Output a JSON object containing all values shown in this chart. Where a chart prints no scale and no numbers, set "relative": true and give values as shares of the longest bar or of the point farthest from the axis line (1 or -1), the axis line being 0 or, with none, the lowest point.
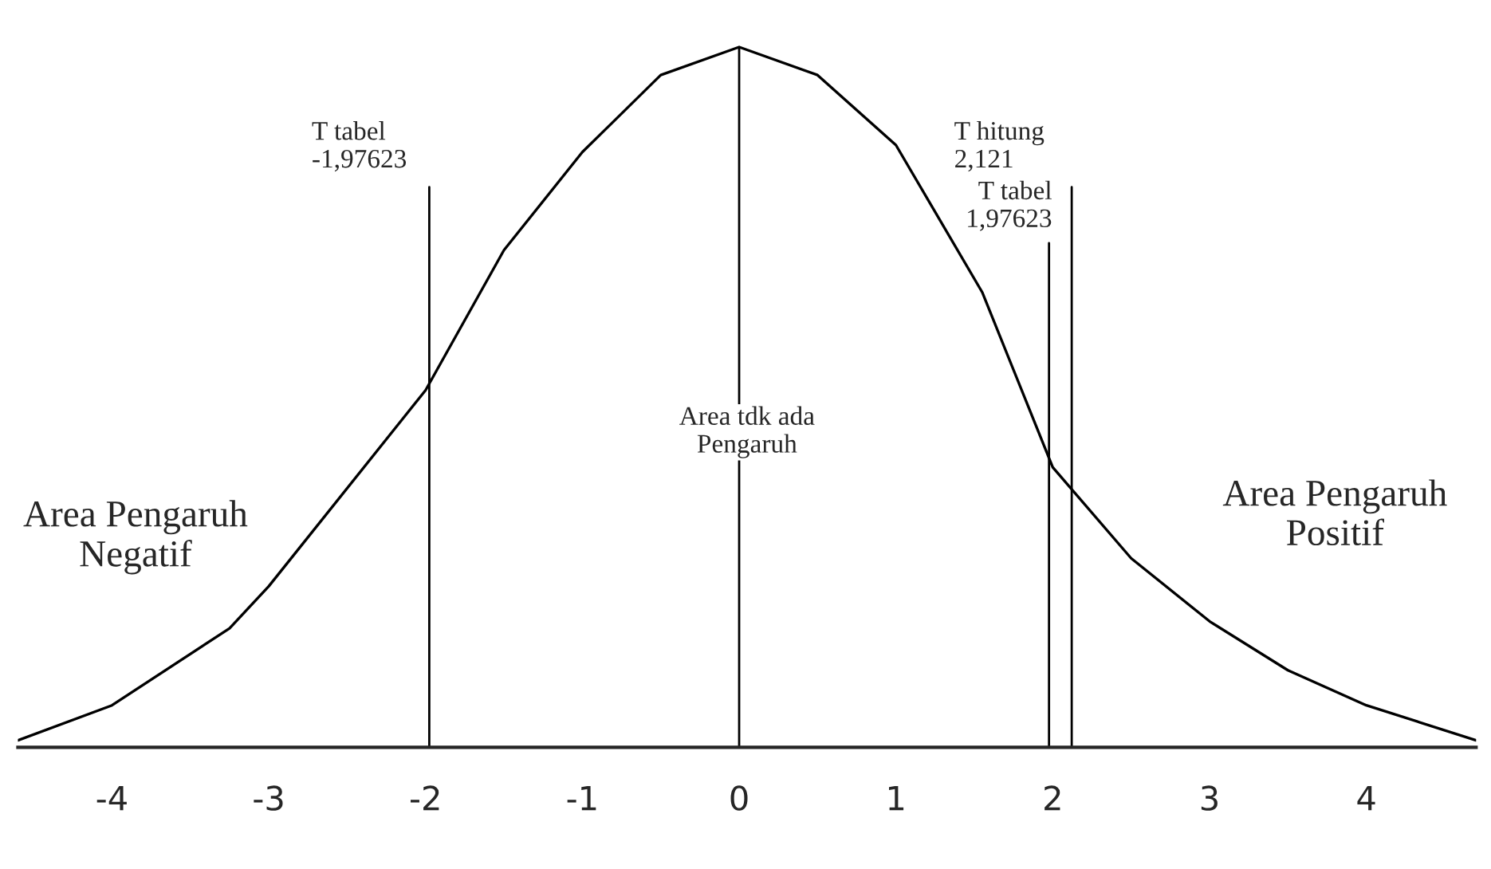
{
  "chart_data": {
    "type": "line",
    "relative": true,
    "x": [
      -4.6,
      -4,
      -3.25,
      -3,
      -2,
      -1.5,
      -1,
      -0.5,
      0,
      0.5,
      1,
      1.55,
      2,
      2.5,
      3,
      3.5,
      4,
      4.7
    ],
    "series": [
      {
        "color": "#000000",
        "values": [
          0.01,
          0.06,
          0.17,
          0.23,
          0.51,
          0.71,
          0.85,
          0.96,
          1,
          0.96,
          0.86,
          0.65,
          0.4,
          0.27,
          0.18,
          0.11,
          0.06,
          0.01
        ]
      }
    ],
    "xlim": [
      -4.6,
      4.7
    ],
    "xticks": [
      -4,
      -3,
      -2,
      -1,
      0,
      1,
      2,
      3,
      4
    ],
    "ref_lines": [
      {
        "axis": "x",
        "value": 0,
        "label": null,
        "color": "#000000"
      },
      {
        "axis": "x",
        "value": -1.97623,
        "label": "T tabel\n-1,97623",
        "color": "#000000"
      },
      {
        "axis": "x",
        "value": 1.97623,
        "label": "T tabel\n1,97623",
        "color": "#000000"
      },
      {
        "axis": "x",
        "value": 2.121,
        "label": "T hitung\n2,121",
        "color": "#000000"
      }
    ],
    "annotations": [
      "Area tdk ada\nPengaruh",
      "Area Pengaruh\nNegatif",
      "Area Pengaruh\nPositif"
    ],
    "grid": false,
    "legend": false,
    "marker": "none",
    "line_style": "solid"
  }
}
